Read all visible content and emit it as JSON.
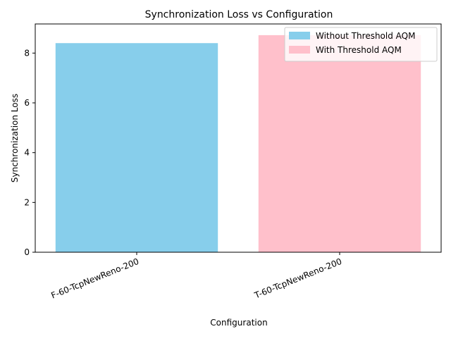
{
  "chart_data": {
    "type": "bar",
    "title": "Synchronization Loss vs Configuration",
    "xlabel": "Configuration",
    "ylabel": "Synchronization Loss",
    "categories": [
      "F-60-TcpNewReno-200",
      "T-60-TcpNewReno-200"
    ],
    "values": [
      8.4,
      8.72
    ],
    "bar_colors": [
      "#87ceeb",
      "#ffc0cb"
    ],
    "ylim": [
      0,
      9.17
    ],
    "yticks": [
      0,
      2,
      4,
      6,
      8
    ],
    "grid": false,
    "legend": {
      "position": "top-right",
      "entries": [
        {
          "label": "Without Threshold AQM",
          "color": "#87ceeb"
        },
        {
          "label": "With Threshold AQM",
          "color": "#ffc0cb"
        }
      ]
    }
  }
}
